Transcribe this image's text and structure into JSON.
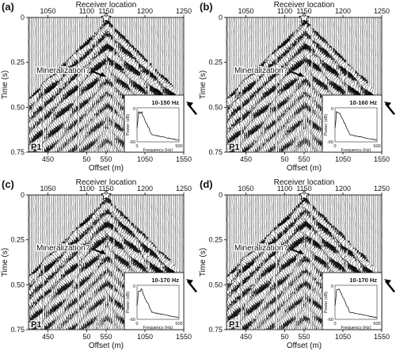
{
  "panels": [
    {
      "label": "(a)",
      "filter": "10-150 Hz",
      "shot": "P1",
      "annotation": "Mineralization?"
    },
    {
      "label": "(b)",
      "filter": "10-160 Hz",
      "shot": "P1",
      "annotation": "Mineralization?"
    },
    {
      "label": "(c)",
      "filter": "10-170 Hz",
      "shot": "P1",
      "annotation": "Mineralization?"
    },
    {
      "label": "(d)",
      "filter": "10-170 Hz",
      "shot": "P1",
      "annotation": "Mineralization?"
    }
  ],
  "axes": {
    "top_title": "Receiver location",
    "top_ticks": [
      "1050",
      "1100",
      "1150",
      "1200",
      "1250"
    ],
    "bottom_title": "Offset (m)",
    "bottom_ticks": [
      "450",
      "50",
      "550",
      "1050",
      "1550"
    ],
    "y_title": "Time (s)",
    "y_ticks": [
      "0",
      "0.25",
      "0.50",
      "0.75"
    ]
  },
  "inset": {
    "y_title": "Power (dB)",
    "x_title": "Frequency (Hz)",
    "y_ticks": [
      "0",
      "-60"
    ],
    "x_ticks": [
      "0",
      "500"
    ]
  }
}
